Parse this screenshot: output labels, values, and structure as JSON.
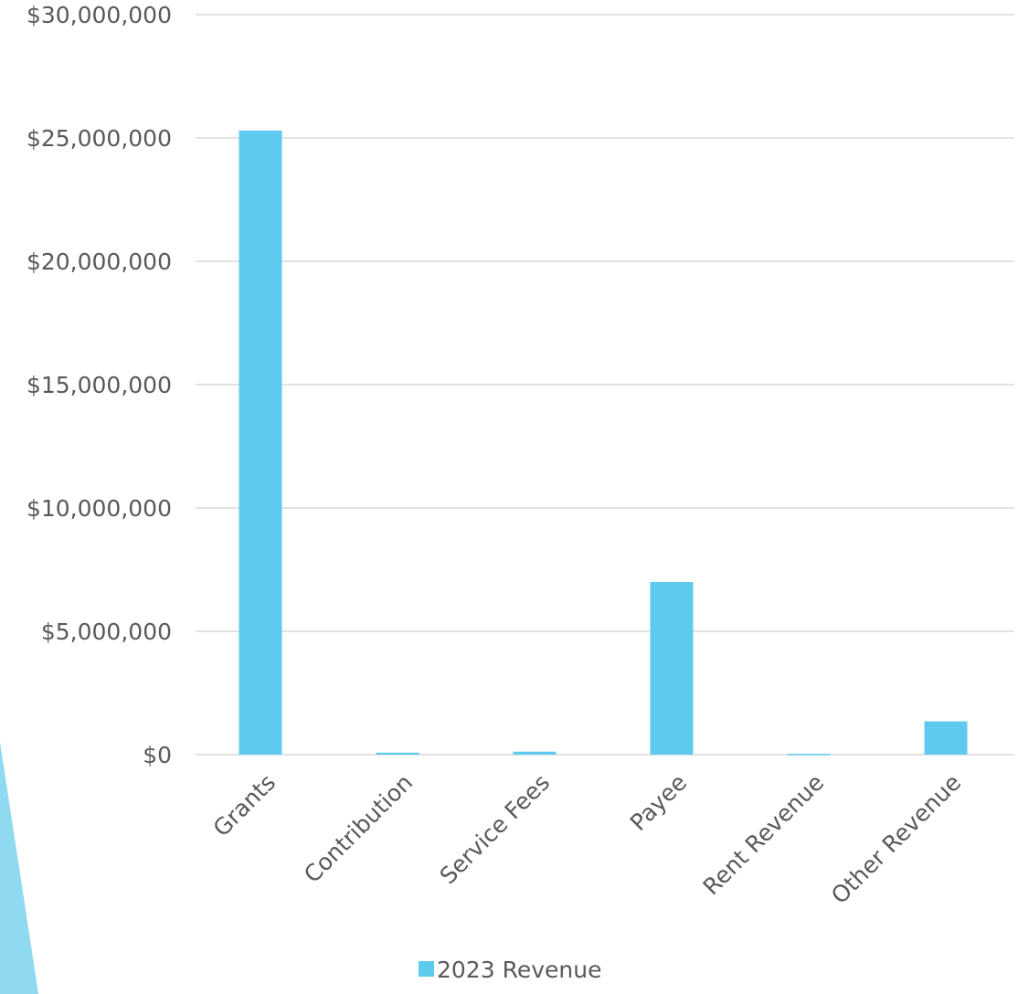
{
  "chart_data": {
    "type": "bar",
    "categories": [
      "Grants",
      "Contribution",
      "Service Fees",
      "Payee",
      "Rent Revenue",
      "Other Revenue"
    ],
    "series": [
      {
        "name": "2023 Revenue",
        "color": "#5ecbee",
        "values": [
          25300000,
          80000,
          120000,
          7000000,
          30000,
          1350000
        ]
      }
    ],
    "y_ticks": [
      "$0",
      "$5,000,000",
      "$10,000,000",
      "$15,000,000",
      "$20,000,000",
      "$25,000,000",
      "$30,000,000"
    ],
    "ylim": [
      0,
      30000000
    ],
    "y_step": 5000000,
    "grid": true,
    "legend": "bottom-center",
    "gridline_color": "#d9d9d9",
    "text_color": "#595959",
    "decoration_color": "#8fdaf0"
  }
}
